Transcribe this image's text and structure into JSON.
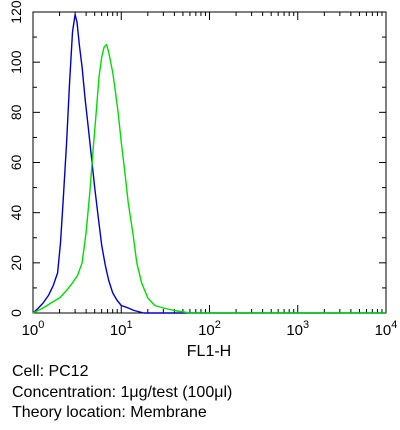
{
  "chart_data": {
    "type": "line",
    "xlabel": "FL1-H",
    "ylabel": "",
    "xscale": "log",
    "xlim": [
      1,
      10000
    ],
    "ylim": [
      0,
      120
    ],
    "x_ticks": [
      {
        "value": 1,
        "base": "10",
        "exp": "0"
      },
      {
        "value": 10,
        "base": "10",
        "exp": "1"
      },
      {
        "value": 100,
        "base": "10",
        "exp": "2"
      },
      {
        "value": 1000,
        "base": "10",
        "exp": "3"
      },
      {
        "value": 10000,
        "base": "10",
        "exp": "4"
      }
    ],
    "y_ticks": [
      0,
      20,
      40,
      60,
      80,
      100,
      120
    ],
    "grid": false,
    "legend": "none",
    "series": [
      {
        "color": "#0000cc",
        "points": [
          [
            1.0,
            0
          ],
          [
            1.15,
            2
          ],
          [
            1.3,
            4
          ],
          [
            1.5,
            7
          ],
          [
            1.7,
            11
          ],
          [
            1.9,
            16
          ],
          [
            2.05,
            28
          ],
          [
            2.2,
            45
          ],
          [
            2.4,
            68
          ],
          [
            2.6,
            92
          ],
          [
            2.8,
            112
          ],
          [
            3.0,
            119
          ],
          [
            3.15,
            116
          ],
          [
            3.35,
            107
          ],
          [
            3.6,
            98
          ],
          [
            3.9,
            85
          ],
          [
            4.2,
            75
          ],
          [
            4.6,
            62
          ],
          [
            5.0,
            50
          ],
          [
            5.5,
            38
          ],
          [
            6.0,
            27
          ],
          [
            6.6,
            19
          ],
          [
            7.2,
            13
          ],
          [
            8.0,
            8
          ],
          [
            9.0,
            5
          ],
          [
            10.0,
            3
          ],
          [
            12.0,
            2
          ],
          [
            14.0,
            1
          ],
          [
            18.0,
            0
          ],
          [
            10000,
            0
          ]
        ]
      },
      {
        "color": "#00dd00",
        "points": [
          [
            1.0,
            0
          ],
          [
            1.3,
            2
          ],
          [
            1.6,
            4
          ],
          [
            2.0,
            6
          ],
          [
            2.4,
            9
          ],
          [
            2.8,
            12
          ],
          [
            3.2,
            15
          ],
          [
            3.6,
            20
          ],
          [
            4.0,
            32
          ],
          [
            4.4,
            48
          ],
          [
            4.8,
            65
          ],
          [
            5.2,
            80
          ],
          [
            5.6,
            94
          ],
          [
            6.0,
            102
          ],
          [
            6.4,
            106
          ],
          [
            6.8,
            107
          ],
          [
            7.2,
            104
          ],
          [
            7.6,
            100
          ],
          [
            8.0,
            96
          ],
          [
            8.6,
            88
          ],
          [
            9.2,
            80
          ],
          [
            10.0,
            68
          ],
          [
            11.0,
            56
          ],
          [
            12.0,
            44
          ],
          [
            13.5,
            32
          ],
          [
            15.0,
            20
          ],
          [
            17.0,
            12
          ],
          [
            20.0,
            6
          ],
          [
            24.0,
            3
          ],
          [
            30.0,
            2
          ],
          [
            40.0,
            1
          ],
          [
            60.0,
            0
          ],
          [
            10000,
            0
          ]
        ]
      }
    ]
  },
  "caption": {
    "cell": "Cell: PC12",
    "concentration": "Concentration: 1μg/test (100μl)",
    "location": "Theory location: Membrane"
  }
}
